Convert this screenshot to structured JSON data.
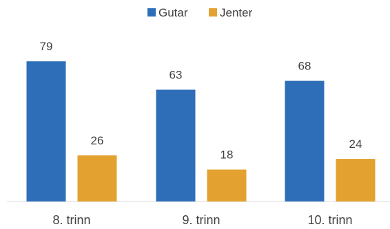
{
  "chart_data": {
    "type": "bar",
    "title": "",
    "xlabel": "",
    "ylabel": "",
    "categories": [
      "8. trinn",
      "9. trinn",
      "10. trinn"
    ],
    "series": [
      {
        "name": "Gutar",
        "values": [
          79,
          63,
          68
        ],
        "color": "#2E6EB8"
      },
      {
        "name": "Jenter",
        "values": [
          26,
          18,
          24
        ],
        "color": "#E3A130"
      }
    ],
    "ylim": [
      0,
      100
    ],
    "grid": false,
    "legend_position": "top-center",
    "data_labels": true
  }
}
